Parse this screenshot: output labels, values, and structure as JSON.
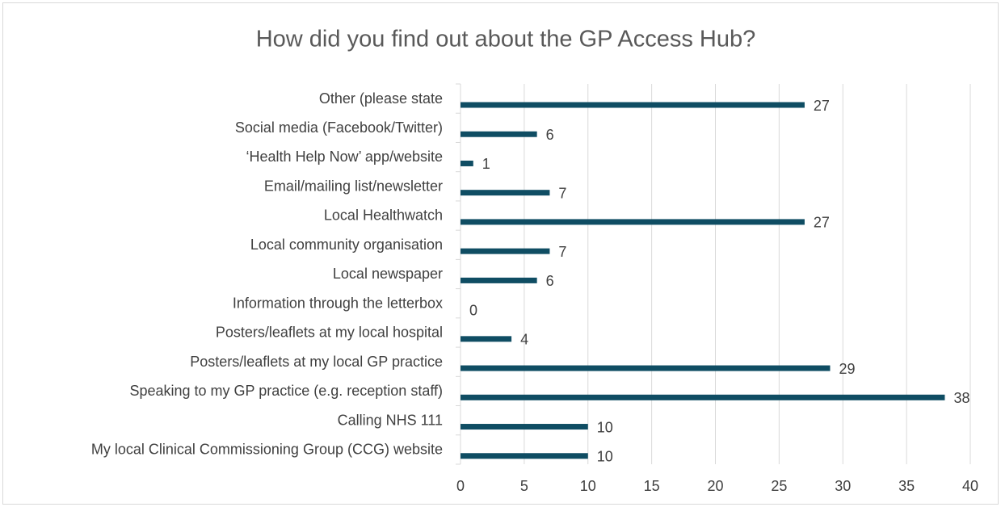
{
  "chart_data": {
    "type": "bar",
    "orientation": "horizontal",
    "title": "How did you find out about the GP Access Hub?",
    "categories": [
      "Other (please state",
      "Social media (Facebook/Twitter)",
      "‘Health Help Now’ app/website",
      "Email/mailing list/newsletter",
      "Local Healthwatch",
      "Local community organisation",
      "Local newspaper",
      "Information through the letterbox",
      "Posters/leaflets at my local hospital",
      "Posters/leaflets at my local GP practice",
      "Speaking to my GP practice (e.g. reception staff)",
      "Calling NHS 111",
      "My local Clinical Commissioning Group (CCG) website"
    ],
    "values": [
      27,
      6,
      1,
      7,
      27,
      7,
      6,
      0,
      4,
      29,
      38,
      10,
      10
    ],
    "color": "#0f4d63",
    "xlim": [
      0,
      40
    ],
    "xticks": [
      0,
      5,
      10,
      15,
      20,
      25,
      30,
      35,
      40
    ],
    "grid": true
  }
}
